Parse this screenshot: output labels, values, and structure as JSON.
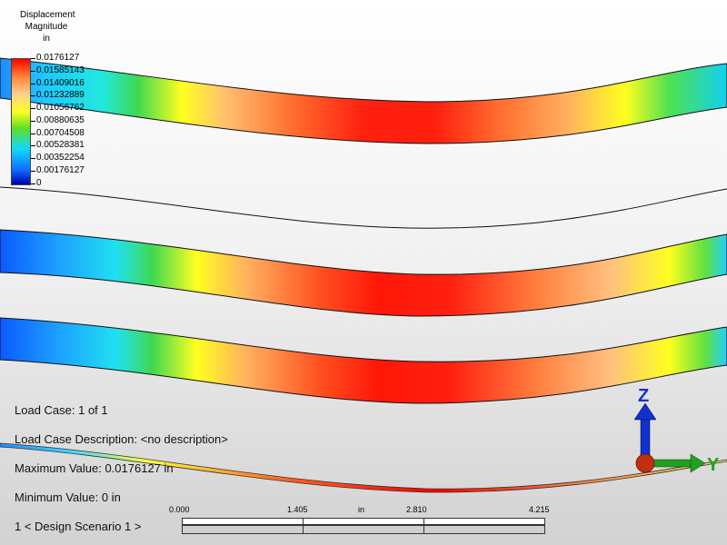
{
  "legend": {
    "title_line1": "Displacement",
    "title_line2": "Magnitude",
    "title_line3": "in",
    "values": [
      "0.0176127",
      "0.01585143",
      "0.01409016",
      "0.01232889",
      "0.01056762",
      "0.00880635",
      "0.00704508",
      "0.00528381",
      "0.00352254",
      "0.00176127",
      "0"
    ]
  },
  "info": {
    "load_case": "Load Case:  1 of 1",
    "load_case_description": "Load Case Description:  <no description>",
    "maximum_value": "Maximum Value: 0.0176127 in",
    "minimum_value": "Minimum Value: 0 in",
    "design_scenario": "1 < Design Scenario 1 >"
  },
  "scale": {
    "tick_0": "0.000",
    "tick_1": "1.405",
    "unit": "in",
    "tick_2": "2.810",
    "tick_3": "4.215"
  },
  "triad": {
    "z_label": "Z",
    "y_label": "Y"
  },
  "colors": {
    "max": "#ff0000",
    "min": "#0000aa",
    "z_axis": "#1030d0",
    "y_axis": "#20a020",
    "origin": "#c03010"
  }
}
